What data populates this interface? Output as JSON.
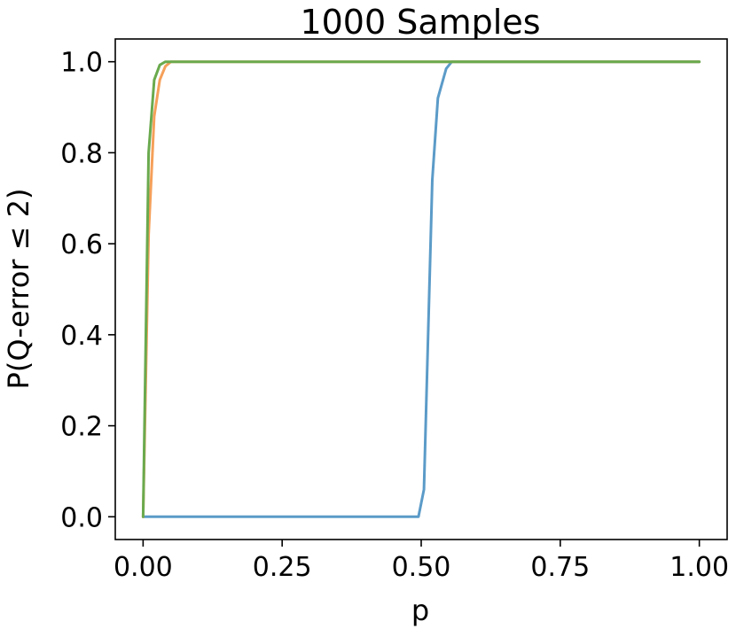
{
  "chart_data": {
    "type": "line",
    "title": "1000 Samples",
    "xlabel": "p",
    "ylabel": "P(Q-error ≤ 2)",
    "xlim": [
      -0.05,
      1.05
    ],
    "ylim": [
      -0.05,
      1.05
    ],
    "xticks": [
      0.0,
      0.25,
      0.5,
      0.75,
      1.0
    ],
    "xtick_labels": [
      "0.00",
      "0.25",
      "0.50",
      "0.75",
      "1.00"
    ],
    "yticks": [
      0.0,
      0.2,
      0.4,
      0.6,
      0.8,
      1.0
    ],
    "ytick_labels": [
      "0.0",
      "0.2",
      "0.4",
      "0.6",
      "0.8",
      "1.0"
    ],
    "grid": false,
    "series": [
      {
        "color": "#5b9bc8",
        "points": [
          [
            0.0,
            0.0
          ],
          [
            0.495,
            0.0
          ],
          [
            0.505,
            0.06
          ],
          [
            0.52,
            0.74
          ],
          [
            0.53,
            0.92
          ],
          [
            0.545,
            0.985
          ],
          [
            0.555,
            1.0
          ],
          [
            1.0,
            1.0
          ]
        ]
      },
      {
        "color": "#f5a05a",
        "points": [
          [
            0.0,
            0.0
          ],
          [
            0.01,
            0.62
          ],
          [
            0.02,
            0.88
          ],
          [
            0.03,
            0.96
          ],
          [
            0.04,
            0.99
          ],
          [
            0.05,
            1.0
          ],
          [
            1.0,
            1.0
          ]
        ]
      },
      {
        "color": "#6aaa4e",
        "points": [
          [
            0.0,
            0.0
          ],
          [
            0.01,
            0.8
          ],
          [
            0.02,
            0.96
          ],
          [
            0.03,
            0.993
          ],
          [
            0.04,
            1.0
          ],
          [
            1.0,
            1.0
          ]
        ]
      }
    ]
  }
}
